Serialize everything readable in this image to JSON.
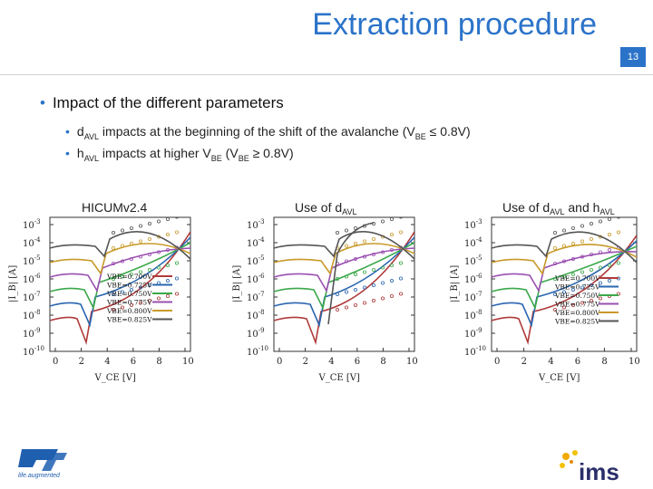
{
  "slide": {
    "title": "Extraction procedure",
    "page_number": "13",
    "bullet_main": "Impact of the different parameters",
    "sub_bullets": [
      {
        "pre": "d",
        "sub": "AVL",
        "post": " impacts at the beginning of the shift of the avalanche (V",
        "sub2": "BE",
        "post2": " ≤ 0.8V)"
      },
      {
        "pre": "h",
        "sub": "AVL",
        "post": " impacts at higher V",
        "sub2": "BE",
        "post2": " (V",
        "sub3": "BE",
        "post3": " ≥ 0.8V)"
      }
    ]
  },
  "plots": [
    {
      "title": "HICUMv2.4",
      "title_sub": "",
      "title_post": ""
    },
    {
      "title": "Use of d",
      "title_sub": "AVL",
      "title_post": ""
    },
    {
      "title": "Use of d",
      "title_sub": "AVL",
      "title_post": " and h",
      "title_sub2": "AVL"
    }
  ],
  "axes": {
    "ylabel": "|I_B| [A]",
    "xlabel": "V_CE [V]",
    "yticks": [
      "10-3",
      "10-4",
      "10-5",
      "10-6",
      "10-7",
      "10-8",
      "10-9",
      "10-10"
    ],
    "xticks": [
      "0",
      "2",
      "4",
      "6",
      "8",
      "10"
    ]
  },
  "legend": [
    "VBE=0.700V",
    "VBE=0.725V",
    "VBE=0.750V",
    "VBE=0.775V",
    "VBE=0.800V",
    "VBE=0.825V"
  ],
  "series_colors": [
    "#b03a3a",
    "#2a66b0",
    "#3aa84a",
    "#9a4fb0",
    "#c89a2a",
    "#555555"
  ],
  "logos": {
    "st_caption": "life.augmented",
    "ims": "ims"
  }
}
